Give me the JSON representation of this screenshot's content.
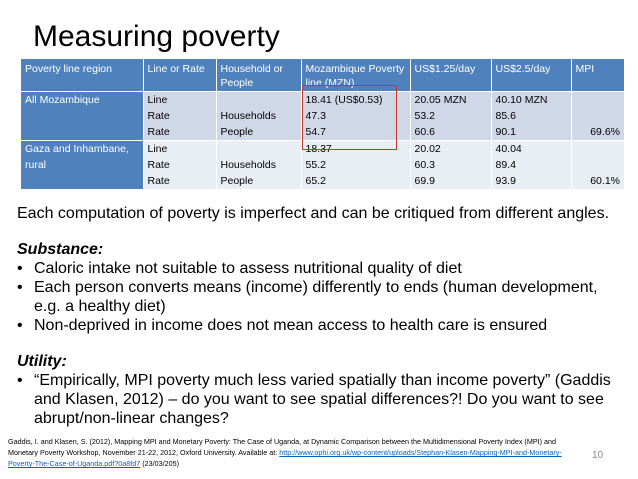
{
  "title": "Measuring poverty",
  "table": {
    "headers": [
      "Poverty line region",
      "Line or Rate",
      "Household or People",
      "Mozambique Poverty line (MZN)",
      "US$1.25/day",
      "US$2.5/day",
      "MPI"
    ],
    "rows": [
      {
        "region": "All Mozambique",
        "line_or_rate": [
          "Line",
          "Rate",
          "Rate"
        ],
        "household_people": [
          "",
          "Households",
          "People"
        ],
        "mozambique": [
          "18.41 (US$0.53)",
          "47.3",
          "54.7"
        ],
        "usd125": [
          "20.05 MZN",
          "53.2",
          "60.6"
        ],
        "usd25": [
          "40.10 MZN",
          "85.6",
          "90.1"
        ],
        "mpi": "69.6%"
      },
      {
        "region": "Gaza and Inhambane, rural",
        "line_or_rate": [
          "Line",
          "Rate",
          "Rate"
        ],
        "household_people": [
          "",
          "Households",
          "People"
        ],
        "mozambique": [
          "18.37",
          "55.2",
          "65.2"
        ],
        "usd125": [
          "20.02",
          "60.3",
          "69.9"
        ],
        "usd25": [
          "40.04",
          "89.4",
          "93.9"
        ],
        "mpi": "60.1%"
      }
    ]
  },
  "body": {
    "intro": "Each computation of poverty is imperfect and can be critiqued from different angles.",
    "substance_heading": "Substance:",
    "substance_items": [
      "Caloric intake not suitable to assess nutritional quality of diet",
      "Each person converts means (income) differently to ends (human development, e.g. a healthy diet)",
      "Non-deprived in income does not mean access to health care is ensured"
    ],
    "utility_heading": "Utility:",
    "utility_items": [
      "“Empirically, MPI poverty much less varied spatially than income poverty” (Gaddis and Klasen, 2012) – do you want to see spatial differences?! Do you want to see abrupt/non-linear changes?"
    ],
    "bullet": "•"
  },
  "footnote": {
    "text": "Gaddis, I. and Klasen, S. (2012), Mapping MPI and Monetary Poverty: The Case of Uganda, at Dynamic Comparison between the Multidimensional Poverty Index (MPI) and Monetary Poverty Workshop, November 21-22, 2012, Oxford University. Available at: ",
    "link": "http://www.ophi.org.uk/wp-content/uploads/Stephan-Klasen-Mapping-MPI-and-Monetary-Poverty-The-Case-of-Uganda.pdf?0a8fd7",
    "date": " (23/03/205)"
  },
  "page_number": "10",
  "colors": {
    "header_blue": "#4f81bd",
    "row_light": "#d0d8e8",
    "row_lighter": "#e9edf4",
    "highlight_red": "#c0392b"
  }
}
